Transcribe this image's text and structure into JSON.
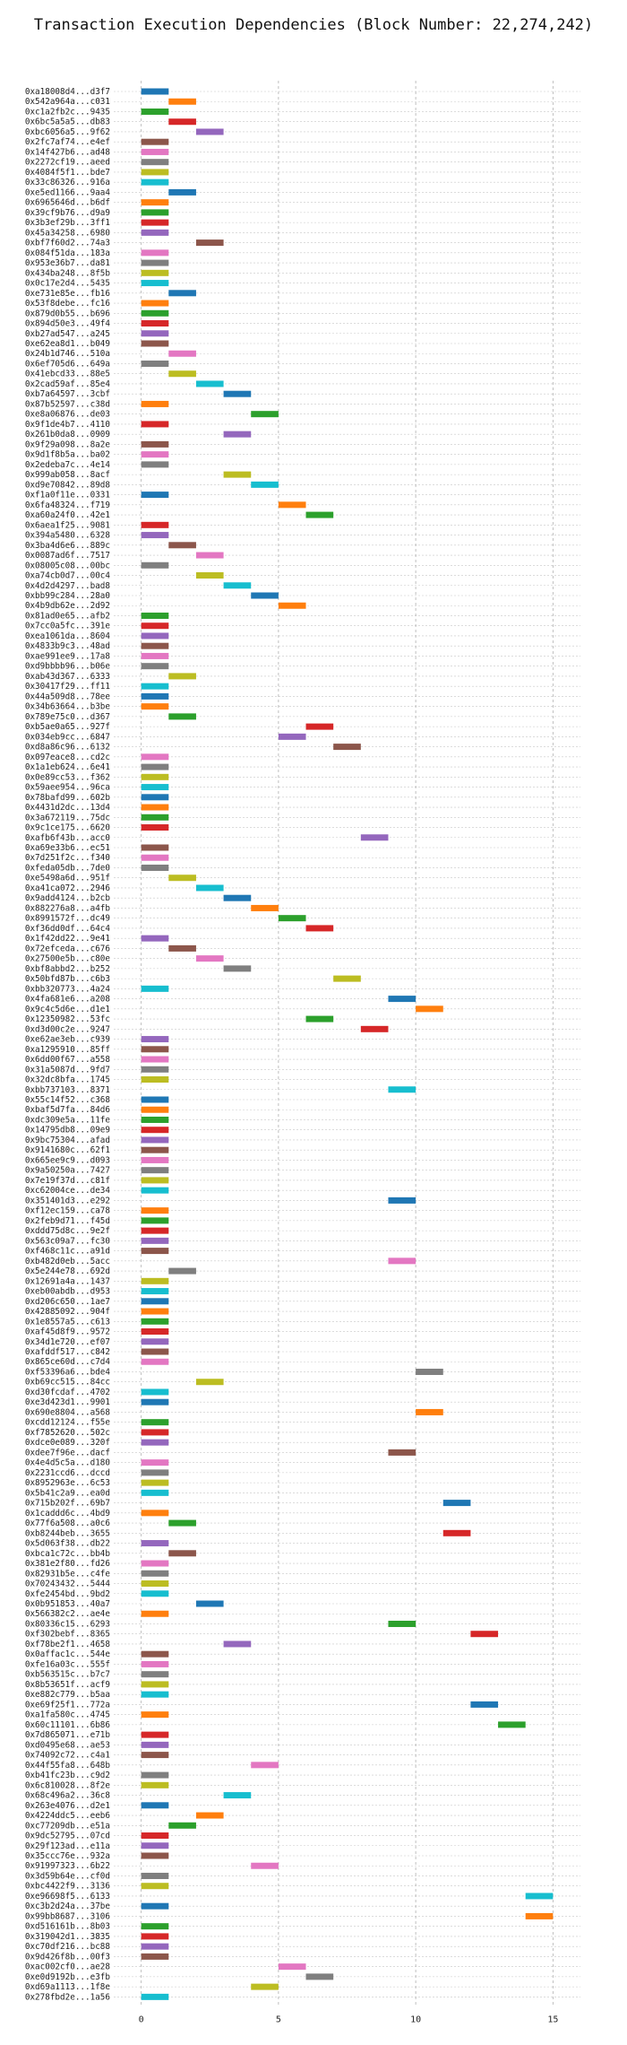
{
  "chart_data": {
    "type": "bar",
    "title": "Transaction Execution Dependencies (Block Number: 22,274,242)",
    "xlabel": "",
    "ylabel": "",
    "xlim": [
      -1,
      16
    ],
    "xticks": [
      0,
      5,
      10,
      15
    ],
    "grid": true,
    "palette": [
      "#1f77b4",
      "#ff7f0e",
      "#2ca02c",
      "#d62728",
      "#9467bd",
      "#8c564b",
      "#e377c2",
      "#7f7f7f",
      "#bcbd22",
      "#17becf"
    ],
    "transactions": [
      {
        "tx": "0xa18008d4...d3f7",
        "level": 0
      },
      {
        "tx": "0x542a964a...c031",
        "level": 1
      },
      {
        "tx": "0xc1a2fb2c...9435",
        "level": 0
      },
      {
        "tx": "0x6bc5a5a5...db83",
        "level": 1
      },
      {
        "tx": "0xbc6056a5...9f62",
        "level": 2
      },
      {
        "tx": "0x2fc7af74...e4ef",
        "level": 0
      },
      {
        "tx": "0x14f427b6...ad48",
        "level": 0
      },
      {
        "tx": "0x2272cf19...aeed",
        "level": 0
      },
      {
        "tx": "0x4084f5f1...bde7",
        "level": 0
      },
      {
        "tx": "0x33c86326...916a",
        "level": 0
      },
      {
        "tx": "0xe5ed1166...9aa4",
        "level": 1
      },
      {
        "tx": "0x6965646d...b6df",
        "level": 0
      },
      {
        "tx": "0x39cf9b76...d9a9",
        "level": 0
      },
      {
        "tx": "0x3b3ef29b...3ff1",
        "level": 0
      },
      {
        "tx": "0x45a34258...6980",
        "level": 0
      },
      {
        "tx": "0xbf7f60d2...74a3",
        "level": 2
      },
      {
        "tx": "0x084f51da...183a",
        "level": 0
      },
      {
        "tx": "0x953e36b7...da81",
        "level": 0
      },
      {
        "tx": "0x434ba248...8f5b",
        "level": 0
      },
      {
        "tx": "0x0c17e2d4...5435",
        "level": 0
      },
      {
        "tx": "0xe731e85e...fb16",
        "level": 1
      },
      {
        "tx": "0x53f8debe...fc16",
        "level": 0
      },
      {
        "tx": "0x879d0b55...b696",
        "level": 0
      },
      {
        "tx": "0x894d50e3...49f4",
        "level": 0
      },
      {
        "tx": "0xb27ad547...a245",
        "level": 0
      },
      {
        "tx": "0xe62ea8d1...b049",
        "level": 0
      },
      {
        "tx": "0x24b1d746...510a",
        "level": 1
      },
      {
        "tx": "0x6ef705d6...649a",
        "level": 0
      },
      {
        "tx": "0x41ebcd33...88e5",
        "level": 1
      },
      {
        "tx": "0x2cad59af...85e4",
        "level": 2
      },
      {
        "tx": "0xb7a64597...3cbf",
        "level": 3
      },
      {
        "tx": "0x87b52597...c38d",
        "level": 0
      },
      {
        "tx": "0xe8a06876...de03",
        "level": 4
      },
      {
        "tx": "0x9f1de4b7...4110",
        "level": 0
      },
      {
        "tx": "0x261b0da8...0909",
        "level": 3
      },
      {
        "tx": "0x9f29a098...8a2e",
        "level": 0
      },
      {
        "tx": "0x9d1f8b5a...ba02",
        "level": 0
      },
      {
        "tx": "0x2edeba7c...4e14",
        "level": 0
      },
      {
        "tx": "0x999ab058...8acf",
        "level": 3
      },
      {
        "tx": "0xd9e70842...89d8",
        "level": 4
      },
      {
        "tx": "0xf1a0f11e...0331",
        "level": 0
      },
      {
        "tx": "0x6fa48324...f719",
        "level": 5
      },
      {
        "tx": "0xa60a24f0...42e1",
        "level": 6
      },
      {
        "tx": "0x6aea1f25...9081",
        "level": 0
      },
      {
        "tx": "0x394a5480...6328",
        "level": 0
      },
      {
        "tx": "0x3ba4d6e6...889c",
        "level": 1
      },
      {
        "tx": "0x0087ad6f...7517",
        "level": 2
      },
      {
        "tx": "0x08005c08...00bc",
        "level": 0
      },
      {
        "tx": "0xa74cb0d7...00c4",
        "level": 2
      },
      {
        "tx": "0x4d2d4297...bad8",
        "level": 3
      },
      {
        "tx": "0xbb99c284...28a0",
        "level": 4
      },
      {
        "tx": "0x4b9db62e...2d92",
        "level": 5
      },
      {
        "tx": "0x81ad0e65...afb2",
        "level": 0
      },
      {
        "tx": "0x7cc0a5fc...391e",
        "level": 0
      },
      {
        "tx": "0xea1061da...8604",
        "level": 0
      },
      {
        "tx": "0x4833b9c3...48ad",
        "level": 0
      },
      {
        "tx": "0xae991ee9...17a8",
        "level": 0
      },
      {
        "tx": "0xd9bbbb96...b06e",
        "level": 0
      },
      {
        "tx": "0xab43d367...6333",
        "level": 1
      },
      {
        "tx": "0x30417f29...ff11",
        "level": 0
      },
      {
        "tx": "0x44a509d8...78ee",
        "level": 0
      },
      {
        "tx": "0x34b63664...b3be",
        "level": 0
      },
      {
        "tx": "0x789e75c0...d367",
        "level": 1
      },
      {
        "tx": "0xb5ae0a65...927f",
        "level": 6
      },
      {
        "tx": "0x034eb9cc...6847",
        "level": 5
      },
      {
        "tx": "0xd8a86c96...6132",
        "level": 7
      },
      {
        "tx": "0x097eace8...cd2c",
        "level": 0
      },
      {
        "tx": "0x1a1eb624...6e41",
        "level": 0
      },
      {
        "tx": "0x0e89cc53...f362",
        "level": 0
      },
      {
        "tx": "0x59aee954...96ca",
        "level": 0
      },
      {
        "tx": "0x78bafd99...602b",
        "level": 0
      },
      {
        "tx": "0x4431d2dc...13d4",
        "level": 0
      },
      {
        "tx": "0x3a672119...75dc",
        "level": 0
      },
      {
        "tx": "0x9c1ce175...6620",
        "level": 0
      },
      {
        "tx": "0xafb6f43b...acc0",
        "level": 8
      },
      {
        "tx": "0xa69e33b6...ec51",
        "level": 0
      },
      {
        "tx": "0x7d251f2c...f340",
        "level": 0
      },
      {
        "tx": "0xfeda05db...7de0",
        "level": 0
      },
      {
        "tx": "0xe5498a6d...951f",
        "level": 1
      },
      {
        "tx": "0xa41ca072...2946",
        "level": 2
      },
      {
        "tx": "0x9add4124...b2cb",
        "level": 3
      },
      {
        "tx": "0x882276a8...a4fb",
        "level": 4
      },
      {
        "tx": "0x8991572f...dc49",
        "level": 5
      },
      {
        "tx": "0xf36dd0df...64c4",
        "level": 6
      },
      {
        "tx": "0x1f42dd22...9e41",
        "level": 0
      },
      {
        "tx": "0x72efceda...c676",
        "level": 1
      },
      {
        "tx": "0x27500e5b...c80e",
        "level": 2
      },
      {
        "tx": "0xbf8abbd2...b252",
        "level": 3
      },
      {
        "tx": "0x50bfd87b...c6b3",
        "level": 7
      },
      {
        "tx": "0xbb320773...4a24",
        "level": 0
      },
      {
        "tx": "0x4fa681e6...a208",
        "level": 9
      },
      {
        "tx": "0x9c4c5d6e...d1e1",
        "level": 10
      },
      {
        "tx": "0x12350982...53fc",
        "level": 6
      },
      {
        "tx": "0xd3d00c2e...9247",
        "level": 8
      },
      {
        "tx": "0xe62ae3eb...c939",
        "level": 0
      },
      {
        "tx": "0xa1295910...85ff",
        "level": 0
      },
      {
        "tx": "0x6dd00f67...a558",
        "level": 0
      },
      {
        "tx": "0x31a5087d...9fd7",
        "level": 0
      },
      {
        "tx": "0x32dc8bfa...1745",
        "level": 0
      },
      {
        "tx": "0xbb737103...8371",
        "level": 9
      },
      {
        "tx": "0x55c14f52...c368",
        "level": 0
      },
      {
        "tx": "0xbaf5d7fa...84d6",
        "level": 0
      },
      {
        "tx": "0xdc309e5a...11fe",
        "level": 0
      },
      {
        "tx": "0x14795db8...09e9",
        "level": 0
      },
      {
        "tx": "0x9bc75304...afad",
        "level": 0
      },
      {
        "tx": "0x9141680c...62f1",
        "level": 0
      },
      {
        "tx": "0x665ee9c9...d093",
        "level": 0
      },
      {
        "tx": "0x9a50250a...7427",
        "level": 0
      },
      {
        "tx": "0x7e19f37d...c81f",
        "level": 0
      },
      {
        "tx": "0xc62004ce...de34",
        "level": 0
      },
      {
        "tx": "0x351401d3...e292",
        "level": 9
      },
      {
        "tx": "0xf12ec159...ca78",
        "level": 0
      },
      {
        "tx": "0x2feb9d71...f45d",
        "level": 0
      },
      {
        "tx": "0xddd75d8c...9e2f",
        "level": 0
      },
      {
        "tx": "0x563c09a7...fc30",
        "level": 0
      },
      {
        "tx": "0xf468c11c...a91d",
        "level": 0
      },
      {
        "tx": "0xb482d0eb...5acc",
        "level": 9
      },
      {
        "tx": "0x5e244e78...692d",
        "level": 1
      },
      {
        "tx": "0x12691a4a...1437",
        "level": 0
      },
      {
        "tx": "0xeb00abdb...d953",
        "level": 0
      },
      {
        "tx": "0xd206c650...1ae7",
        "level": 0
      },
      {
        "tx": "0x42885092...904f",
        "level": 0
      },
      {
        "tx": "0x1e8557a5...c613",
        "level": 0
      },
      {
        "tx": "0xaf45d8f9...9572",
        "level": 0
      },
      {
        "tx": "0x34d1e720...ef07",
        "level": 0
      },
      {
        "tx": "0xafddf517...c842",
        "level": 0
      },
      {
        "tx": "0x865ce60d...c7d4",
        "level": 0
      },
      {
        "tx": "0xf53396a6...bde4",
        "level": 10
      },
      {
        "tx": "0xb69cc515...84cc",
        "level": 2
      },
      {
        "tx": "0xd30fcdaf...4702",
        "level": 0
      },
      {
        "tx": "0xe3d423d1...9901",
        "level": 0
      },
      {
        "tx": "0x690e8804...a568",
        "level": 10
      },
      {
        "tx": "0xcdd12124...f55e",
        "level": 0
      },
      {
        "tx": "0xf7852620...502c",
        "level": 0
      },
      {
        "tx": "0xdce0e089...320f",
        "level": 0
      },
      {
        "tx": "0xdee7f96e...dacf",
        "level": 9
      },
      {
        "tx": "0x4e4d5c5a...d180",
        "level": 0
      },
      {
        "tx": "0x2231ccd6...dccd",
        "level": 0
      },
      {
        "tx": "0x8952963e...6c53",
        "level": 0
      },
      {
        "tx": "0x5b41c2a9...ea0d",
        "level": 0
      },
      {
        "tx": "0x715b202f...69b7",
        "level": 11
      },
      {
        "tx": "0x1caddd6c...4bd9",
        "level": 0
      },
      {
        "tx": "0x77f6a508...a0c6",
        "level": 1
      },
      {
        "tx": "0xb8244beb...3655",
        "level": 11
      },
      {
        "tx": "0x5d063f38...db22",
        "level": 0
      },
      {
        "tx": "0xbca1c72c...bb4b",
        "level": 1
      },
      {
        "tx": "0x381e2f80...fd26",
        "level": 0
      },
      {
        "tx": "0x82931b5e...c4fe",
        "level": 0
      },
      {
        "tx": "0x70243432...5444",
        "level": 0
      },
      {
        "tx": "0xfe2454bd...9bd2",
        "level": 0
      },
      {
        "tx": "0x0b951853...40a7",
        "level": 2
      },
      {
        "tx": "0x566382c2...ae4e",
        "level": 0
      },
      {
        "tx": "0x80336c15...6293",
        "level": 9
      },
      {
        "tx": "0xf302bebf...8365",
        "level": 12
      },
      {
        "tx": "0xf78be2f1...4658",
        "level": 3
      },
      {
        "tx": "0x0affac1c...544e",
        "level": 0
      },
      {
        "tx": "0xfe16a03c...555f",
        "level": 0
      },
      {
        "tx": "0xb563515c...b7c7",
        "level": 0
      },
      {
        "tx": "0x8b53651f...acf9",
        "level": 0
      },
      {
        "tx": "0xe882c779...b5aa",
        "level": 0
      },
      {
        "tx": "0xe69f25f1...772a",
        "level": 12
      },
      {
        "tx": "0xa1fa580c...4745",
        "level": 0
      },
      {
        "tx": "0x60c11101...6b86",
        "level": 13
      },
      {
        "tx": "0x7d865071...e71b",
        "level": 0
      },
      {
        "tx": "0xd0495e68...ae53",
        "level": 0
      },
      {
        "tx": "0x74092c72...c4a1",
        "level": 0
      },
      {
        "tx": "0x44f55fa8...648b",
        "level": 4
      },
      {
        "tx": "0xb41fc23b...c9d2",
        "level": 0
      },
      {
        "tx": "0x6c810028...8f2e",
        "level": 0
      },
      {
        "tx": "0x68c496a2...36c8",
        "level": 3
      },
      {
        "tx": "0x263e4076...d2e1",
        "level": 0
      },
      {
        "tx": "0x4224ddc5...eeb6",
        "level": 2
      },
      {
        "tx": "0xc77209db...e51a",
        "level": 1
      },
      {
        "tx": "0x9dc52795...07cd",
        "level": 0
      },
      {
        "tx": "0x29f123ad...e11a",
        "level": 0
      },
      {
        "tx": "0x35ccc76e...932a",
        "level": 0
      },
      {
        "tx": "0x91997323...6b22",
        "level": 4
      },
      {
        "tx": "0x3d59b64e...cf0d",
        "level": 0
      },
      {
        "tx": "0xbc4422f9...3136",
        "level": 0
      },
      {
        "tx": "0xe96698f5...6133",
        "level": 14
      },
      {
        "tx": "0xc3b2d24a...37be",
        "level": 0
      },
      {
        "tx": "0x99bb8687...3106",
        "level": 14
      },
      {
        "tx": "0xd516161b...8b03",
        "level": 0
      },
      {
        "tx": "0x319042d1...3835",
        "level": 0
      },
      {
        "tx": "0xc70df216...bc88",
        "level": 0
      },
      {
        "tx": "0x9d426f8b...00f3",
        "level": 0
      },
      {
        "tx": "0xac002cf0...ae28",
        "level": 5
      },
      {
        "tx": "0xe0d9192b...e3fb",
        "level": 6
      },
      {
        "tx": "0xd69a1113...1f8e",
        "level": 4
      },
      {
        "tx": "0x278fbd2e...1a56",
        "level": 0
      }
    ]
  }
}
